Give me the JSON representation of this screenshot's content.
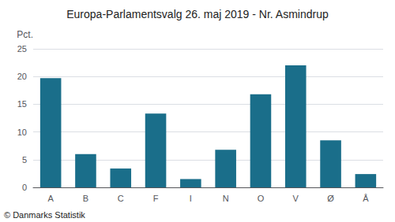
{
  "chart_data": {
    "type": "bar",
    "title": "Europa-Parlamentsvalg 26. maj 2019 - Nr. Asmindrup",
    "categories": [
      "A",
      "B",
      "C",
      "F",
      "I",
      "N",
      "O",
      "V",
      "Ø",
      "Å"
    ],
    "values": [
      19.7,
      6.0,
      3.4,
      13.3,
      1.5,
      6.8,
      16.8,
      22.0,
      8.5,
      2.4
    ],
    "color": "#1a6e8a",
    "ylabel": "Pct.",
    "ylim": [
      0,
      25
    ],
    "yticks": [
      0,
      5,
      10,
      15,
      20,
      25
    ],
    "grid": true,
    "annotations": [
      "© Danmarks Statistik"
    ]
  }
}
